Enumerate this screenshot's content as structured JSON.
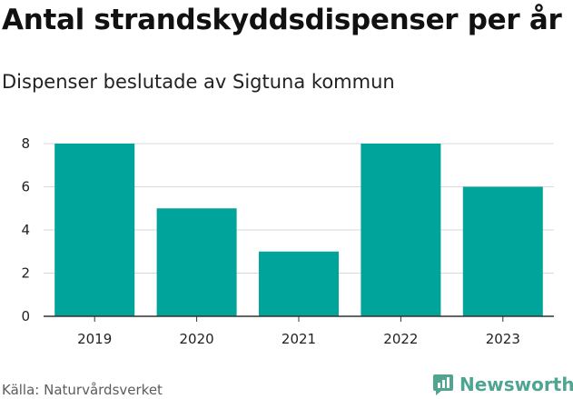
{
  "title": "Antal strandskyddsdispenser per år",
  "subtitle": "Dispenser beslutade av Sigtuna kommun",
  "source": "Källa: Naturvårdsverket",
  "brand": {
    "name": "Newsworthy",
    "icon": "newsworthy-logo-icon",
    "color": "#4fa590"
  },
  "colors": {
    "bar": "#00a49a",
    "grid": "#d9d9d9",
    "axis": "#333333"
  },
  "chart_data": {
    "type": "bar",
    "title": "Antal strandskyddsdispenser per år",
    "subtitle": "Dispenser beslutade av Sigtuna kommun",
    "categories": [
      "2019",
      "2020",
      "2021",
      "2022",
      "2023"
    ],
    "values": [
      8,
      5,
      3,
      8,
      6
    ],
    "xlabel": "",
    "ylabel": "",
    "ylim": [
      0,
      8
    ],
    "yticks": [
      0,
      2,
      4,
      6,
      8
    ],
    "grid": true,
    "legend": "none"
  }
}
